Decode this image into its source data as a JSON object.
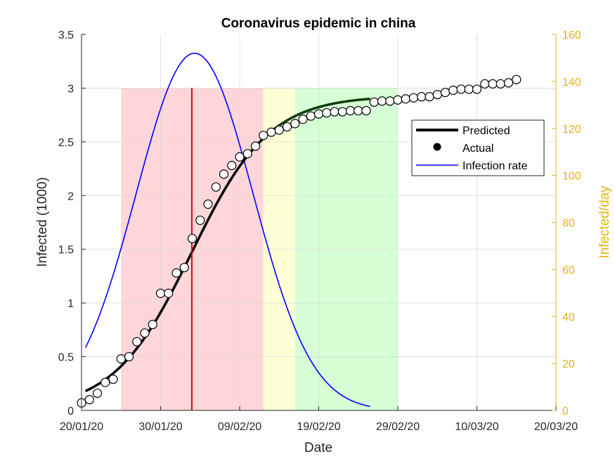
{
  "chart_data": {
    "type": "line",
    "title": "Coronavirus epidemic in china",
    "xlabel": "Date",
    "ylabel": "Infected (1000)",
    "y2label": "Infected/day",
    "x_tick_labels": [
      "20/01/20",
      "30/01/20",
      "09/02/20",
      "19/02/20",
      "29/02/20",
      "10/03/20",
      "20/03/20"
    ],
    "xlim_days": [
      0,
      60
    ],
    "ylim": [
      0,
      3.5
    ],
    "y_ticks": [
      "0",
      "0.5",
      "1",
      "1.5",
      "2",
      "2.5",
      "3",
      "3.5"
    ],
    "y2lim": [
      0,
      160
    ],
    "y2_ticks": [
      "0",
      "20",
      "40",
      "60",
      "80",
      "100",
      "120",
      "140",
      "160"
    ],
    "grid": true,
    "legend_position": "top-right",
    "colors": {
      "predicted": "#000000",
      "predicted_late": "#0a3d0a",
      "actual_fill": "#ffffff",
      "infection_rate": "#0000ff",
      "right_axis": "#e8b30f",
      "peak_line": "#e00000",
      "zone_red": "#ffd6d9",
      "zone_yellow": "#ffffd6",
      "zone_green": "#d6ffd6"
    },
    "shaded_regions_days": [
      {
        "name": "zone_red",
        "from": 5.0,
        "to": 23.0,
        "ymax": 3.0
      },
      {
        "name": "zone_yellow",
        "from": 23.0,
        "to": 27.0,
        "ymax": 3.0
      },
      {
        "name": "zone_green",
        "from": 27.0,
        "to": 40.0,
        "ymax": 3.0
      }
    ],
    "peak_line_day": 13.95,
    "peak_line_ymax": 3.0,
    "series": [
      {
        "name": "Predicted",
        "axis": "left",
        "logistic": {
          "K": 2.93,
          "r": 0.2035,
          "t0": 13.9
        },
        "x_days_range": [
          0.5,
          36.5
        ]
      },
      {
        "name": "Actual",
        "axis": "left",
        "x_days": [
          0,
          1,
          2,
          3,
          4,
          5,
          6,
          7,
          8,
          9,
          10,
          11,
          12,
          13,
          14,
          15,
          16,
          17,
          18,
          19,
          20,
          21,
          22,
          23,
          24,
          25,
          26,
          27,
          28,
          29,
          30,
          31,
          32,
          33,
          34,
          35,
          36,
          37,
          38,
          39,
          40,
          41,
          42,
          43,
          44,
          45,
          46,
          47,
          48,
          49,
          50,
          51,
          52,
          53,
          54,
          55
        ],
        "values": [
          0.07,
          0.1,
          0.16,
          0.26,
          0.29,
          0.48,
          0.5,
          0.64,
          0.72,
          0.8,
          1.09,
          1.09,
          1.28,
          1.33,
          1.6,
          1.77,
          1.92,
          2.08,
          2.2,
          2.28,
          2.36,
          2.39,
          2.46,
          2.56,
          2.59,
          2.61,
          2.64,
          2.67,
          2.71,
          2.74,
          2.76,
          2.77,
          2.78,
          2.78,
          2.79,
          2.79,
          2.79,
          2.87,
          2.88,
          2.88,
          2.89,
          2.9,
          2.91,
          2.92,
          2.92,
          2.94,
          2.96,
          2.98,
          2.99,
          2.99,
          2.99,
          3.04,
          3.04,
          3.04,
          3.05,
          3.08
        ]
      },
      {
        "name": "Infection rate",
        "axis": "right",
        "gaussian": {
          "peak": 152,
          "mu": 14.3,
          "sigma": 7.4
        },
        "x_days_range": [
          0.5,
          36.5
        ]
      }
    ]
  }
}
